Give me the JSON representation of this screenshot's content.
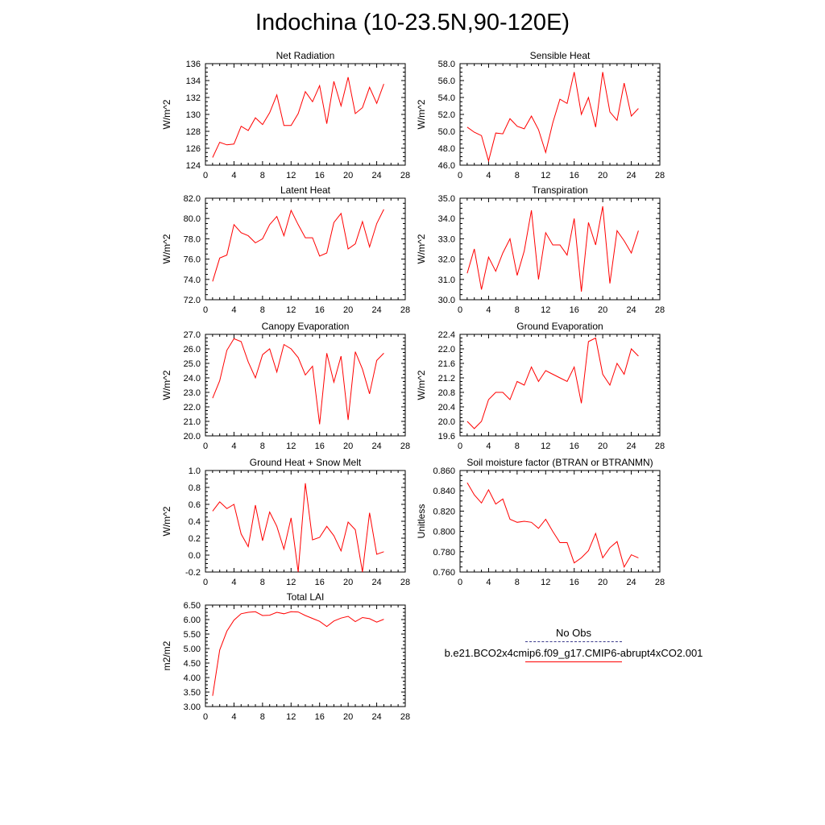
{
  "title": "Indochina (10-23.5N,90-120E)",
  "series_color": "#ff0000",
  "obs_color": "#3a3a8c",
  "legend": {
    "obs_label": "No Obs",
    "model_label": "b.e21.BCO2x4cmip6.f09_g17.CMIP6-abrupt4xCO2.001"
  },
  "chart_data": [
    {
      "type": "line",
      "title": "Net Radiation",
      "ylabel": "W/m^2",
      "xlim": [
        0,
        28
      ],
      "xticks": [
        0,
        4,
        8,
        12,
        16,
        20,
        24,
        28
      ],
      "ylim": [
        124,
        136
      ],
      "yticks": [
        "124",
        "126",
        "128",
        "130",
        "132",
        "134",
        "136"
      ],
      "x": [
        1,
        2,
        3,
        4,
        5,
        6,
        7,
        8,
        9,
        10,
        11,
        12,
        13,
        14,
        15,
        16,
        17,
        18,
        19,
        20,
        21,
        22,
        23,
        24,
        25
      ],
      "values": [
        124.9,
        126.7,
        126.4,
        126.5,
        128.6,
        128.1,
        129.6,
        128.8,
        130.2,
        132.3,
        128.7,
        128.7,
        130.1,
        132.7,
        131.5,
        133.4,
        128.9,
        133.9,
        131.0,
        134.4,
        130.1,
        130.8,
        133.2,
        131.3,
        133.6
      ]
    },
    {
      "type": "line",
      "title": "Sensible Heat",
      "ylabel": "W/m^2",
      "xlim": [
        0,
        28
      ],
      "xticks": [
        0,
        4,
        8,
        12,
        16,
        20,
        24,
        28
      ],
      "ylim": [
        46,
        58
      ],
      "yticks": [
        "46.0",
        "48.0",
        "50.0",
        "52.0",
        "54.0",
        "56.0",
        "58.0"
      ],
      "x": [
        1,
        2,
        3,
        4,
        5,
        6,
        7,
        8,
        9,
        10,
        11,
        12,
        13,
        14,
        15,
        16,
        17,
        18,
        19,
        20,
        21,
        22,
        23,
        24,
        25
      ],
      "values": [
        50.5,
        49.9,
        49.5,
        46.5,
        49.8,
        49.7,
        51.5,
        50.6,
        50.3,
        51.8,
        50.2,
        47.5,
        51.0,
        53.8,
        53.3,
        57.0,
        52.0,
        54.0,
        50.5,
        57.0,
        52.3,
        51.3,
        55.7,
        51.8,
        52.7
      ]
    },
    {
      "type": "line",
      "title": "Latent Heat",
      "ylabel": "W/m^2",
      "xlim": [
        0,
        28
      ],
      "xticks": [
        0,
        4,
        8,
        12,
        16,
        20,
        24,
        28
      ],
      "ylim": [
        72,
        82
      ],
      "yticks": [
        "72.0",
        "74.0",
        "76.0",
        "78.0",
        "80.0",
        "82.0"
      ],
      "x": [
        1,
        2,
        3,
        4,
        5,
        6,
        7,
        8,
        9,
        10,
        11,
        12,
        13,
        14,
        15,
        16,
        17,
        18,
        19,
        20,
        21,
        22,
        23,
        24,
        25
      ],
      "values": [
        73.8,
        76.1,
        76.4,
        79.4,
        78.6,
        78.3,
        77.6,
        78.0,
        79.4,
        80.2,
        78.3,
        80.8,
        79.4,
        78.1,
        78.1,
        76.3,
        76.6,
        79.6,
        80.5,
        77.0,
        77.5,
        79.7,
        77.2,
        79.5,
        80.9
      ]
    },
    {
      "type": "line",
      "title": "Transpiration",
      "ylabel": "W/m^2",
      "xlim": [
        0,
        28
      ],
      "xticks": [
        0,
        4,
        8,
        12,
        16,
        20,
        24,
        28
      ],
      "ylim": [
        30,
        35
      ],
      "yticks": [
        "30.0",
        "31.0",
        "32.0",
        "33.0",
        "34.0",
        "35.0"
      ],
      "x": [
        1,
        2,
        3,
        4,
        5,
        6,
        7,
        8,
        9,
        10,
        11,
        12,
        13,
        14,
        15,
        16,
        17,
        18,
        19,
        20,
        21,
        22,
        23,
        24,
        25
      ],
      "values": [
        31.3,
        32.5,
        30.5,
        32.1,
        31.4,
        32.3,
        33.0,
        31.2,
        32.4,
        34.4,
        31.0,
        33.3,
        32.7,
        32.7,
        32.2,
        34.0,
        30.4,
        33.8,
        32.7,
        34.6,
        30.8,
        33.4,
        32.9,
        32.3,
        33.4
      ]
    },
    {
      "type": "line",
      "title": "Canopy Evaporation",
      "ylabel": "W/m^2",
      "xlim": [
        0,
        28
      ],
      "xticks": [
        0,
        4,
        8,
        12,
        16,
        20,
        24,
        28
      ],
      "ylim": [
        20,
        27
      ],
      "yticks": [
        "20.0",
        "21.0",
        "22.0",
        "23.0",
        "24.0",
        "25.0",
        "26.0",
        "27.0"
      ],
      "x": [
        1,
        2,
        3,
        4,
        5,
        6,
        7,
        8,
        9,
        10,
        11,
        12,
        13,
        14,
        15,
        16,
        17,
        18,
        19,
        20,
        21,
        22,
        23,
        24,
        25
      ],
      "values": [
        22.6,
        23.8,
        25.9,
        26.7,
        26.5,
        25.1,
        24.0,
        25.6,
        26.0,
        24.4,
        26.3,
        26.0,
        25.4,
        24.2,
        24.8,
        20.8,
        25.7,
        23.7,
        25.5,
        21.1,
        25.8,
        24.6,
        22.9,
        25.2,
        25.7
      ]
    },
    {
      "type": "line",
      "title": "Ground Evaporation",
      "ylabel": "W/m^2",
      "xlim": [
        0,
        28
      ],
      "xticks": [
        0,
        4,
        8,
        12,
        16,
        20,
        24,
        28
      ],
      "ylim": [
        19.6,
        22.4
      ],
      "yticks": [
        "19.6",
        "20.0",
        "20.4",
        "20.8",
        "21.2",
        "21.6",
        "22.0",
        "22.4"
      ],
      "x": [
        1,
        2,
        3,
        4,
        5,
        6,
        7,
        8,
        9,
        10,
        11,
        12,
        13,
        14,
        15,
        16,
        17,
        18,
        19,
        20,
        21,
        22,
        23,
        24,
        25
      ],
      "values": [
        20.0,
        19.8,
        20.0,
        20.6,
        20.8,
        20.8,
        20.6,
        21.1,
        21.0,
        21.5,
        21.1,
        21.4,
        21.3,
        21.2,
        21.1,
        21.5,
        20.5,
        22.2,
        22.3,
        21.3,
        21.0,
        21.6,
        21.3,
        22.0,
        21.8
      ]
    },
    {
      "type": "line",
      "title": "Ground Heat + Snow Melt",
      "ylabel": "W/m^2",
      "xlim": [
        0,
        28
      ],
      "xticks": [
        0,
        4,
        8,
        12,
        16,
        20,
        24,
        28
      ],
      "ylim": [
        -0.2,
        1.0
      ],
      "yticks": [
        "-0.2",
        "0.0",
        "0.2",
        "0.4",
        "0.6",
        "0.8",
        "1.0"
      ],
      "x": [
        1,
        2,
        3,
        4,
        5,
        6,
        7,
        8,
        9,
        10,
        11,
        12,
        13,
        14,
        15,
        16,
        17,
        18,
        19,
        20,
        21,
        22,
        23,
        24,
        25
      ],
      "values": [
        0.52,
        0.63,
        0.55,
        0.6,
        0.25,
        0.1,
        0.59,
        0.17,
        0.51,
        0.34,
        0.07,
        0.44,
        -0.2,
        0.85,
        0.18,
        0.21,
        0.34,
        0.23,
        0.05,
        0.39,
        0.3,
        -0.2,
        0.5,
        0.01,
        0.04
      ]
    },
    {
      "type": "line",
      "title": "Soil moisture factor (BTRAN or BTRANMN)",
      "ylabel": "Unitless",
      "xlim": [
        0,
        28
      ],
      "xticks": [
        0,
        4,
        8,
        12,
        16,
        20,
        24,
        28
      ],
      "ylim": [
        0.76,
        0.86
      ],
      "yticks": [
        "0.760",
        "0.780",
        "0.800",
        "0.820",
        "0.840",
        "0.860"
      ],
      "x": [
        1,
        2,
        3,
        4,
        5,
        6,
        7,
        8,
        9,
        10,
        11,
        12,
        13,
        14,
        15,
        16,
        17,
        18,
        19,
        20,
        21,
        22,
        23,
        24,
        25
      ],
      "values": [
        0.848,
        0.836,
        0.828,
        0.841,
        0.827,
        0.832,
        0.812,
        0.809,
        0.81,
        0.809,
        0.803,
        0.812,
        0.8,
        0.789,
        0.789,
        0.769,
        0.774,
        0.781,
        0.798,
        0.774,
        0.784,
        0.79,
        0.765,
        0.777,
        0.774
      ]
    },
    {
      "type": "line",
      "title": "Total LAI",
      "ylabel": "m2/m2",
      "xlim": [
        0,
        28
      ],
      "xticks": [
        0,
        4,
        8,
        12,
        16,
        20,
        24,
        28
      ],
      "ylim": [
        3.0,
        6.5
      ],
      "yticks": [
        "3.00",
        "3.50",
        "4.00",
        "4.50",
        "5.00",
        "5.50",
        "6.00",
        "6.50"
      ],
      "x": [
        1,
        2,
        3,
        4,
        5,
        6,
        7,
        8,
        9,
        10,
        11,
        12,
        13,
        14,
        15,
        16,
        17,
        18,
        19,
        20,
        21,
        22,
        23,
        24,
        25
      ],
      "values": [
        3.37,
        4.95,
        5.6,
        5.98,
        6.2,
        6.25,
        6.27,
        6.14,
        6.15,
        6.25,
        6.2,
        6.27,
        6.26,
        6.14,
        6.04,
        5.94,
        5.76,
        5.95,
        6.05,
        6.11,
        5.93,
        6.07,
        6.03,
        5.91,
        6.01
      ]
    }
  ]
}
